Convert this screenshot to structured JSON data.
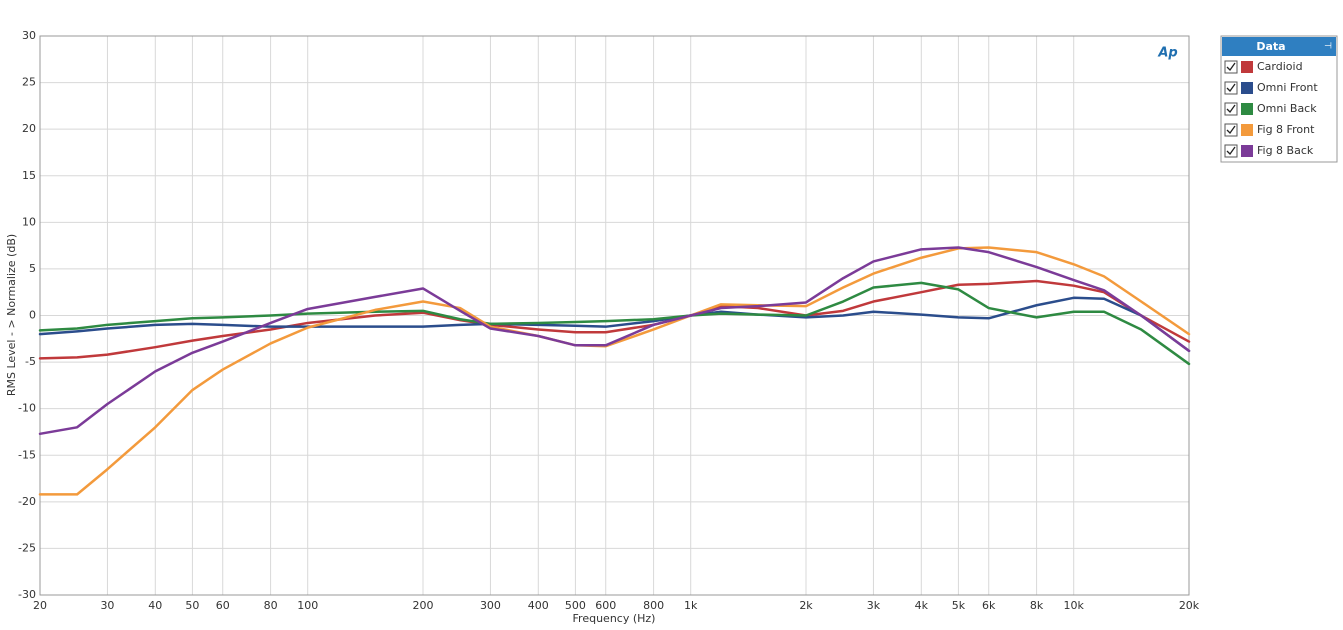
{
  "chart_data": {
    "type": "line",
    "y_label": "RMS Level - > Normalize (dB)",
    "x_label": "Frequency (Hz)",
    "logo": "Ap",
    "legend_title": "Data",
    "log_x": true,
    "grid": true,
    "legend": "right",
    "xlim": [
      20,
      20000
    ],
    "ylim": [
      -30,
      30
    ],
    "xticks": [
      20,
      30,
      40,
      50,
      60,
      80,
      100,
      200,
      300,
      400,
      500,
      600,
      800,
      {
        "value": 1000,
        "label": "1k"
      },
      {
        "value": 2000,
        "label": "2k"
      },
      {
        "value": 3000,
        "label": "3k"
      },
      {
        "value": 4000,
        "label": "4k"
      },
      {
        "value": 5000,
        "label": "5k"
      },
      {
        "value": 6000,
        "label": "6k"
      },
      {
        "value": 8000,
        "label": "8k"
      },
      {
        "value": 10000,
        "label": "10k"
      },
      {
        "value": 20000,
        "label": "20k"
      }
    ],
    "yticks": [
      -30,
      -25,
      -20,
      -15,
      -10,
      -5,
      0,
      5,
      10,
      15,
      20,
      25,
      30
    ],
    "x": [
      20,
      25,
      30,
      40,
      50,
      60,
      80,
      100,
      150,
      200,
      250,
      300,
      400,
      500,
      600,
      800,
      1000,
      1200,
      1500,
      2000,
      2500,
      3000,
      4000,
      5000,
      6000,
      8000,
      10000,
      12000,
      15000,
      20000
    ],
    "series": [
      {
        "name": "Cardioid",
        "color": "#c0393b",
        "values": [
          -4.6,
          -4.5,
          -4.2,
          -3.4,
          -2.7,
          -2.2,
          -1.5,
          -0.8,
          0,
          0.3,
          -0.5,
          -1.0,
          -1.5,
          -1.8,
          -1.8,
          -1.0,
          0,
          1.0,
          0.8,
          0,
          0.5,
          1.5,
          2.5,
          3.3,
          3.4,
          3.7,
          3.2,
          2.5,
          0,
          -2.8
        ]
      },
      {
        "name": "Omni Front",
        "color": "#2b4d8c",
        "values": [
          -2.0,
          -1.7,
          -1.4,
          -1.0,
          -0.9,
          -1.0,
          -1.2,
          -1.2,
          -1.2,
          -1.2,
          -1.0,
          -0.9,
          -1.0,
          -1.1,
          -1.2,
          -0.6,
          0,
          0.4,
          0.1,
          -0.2,
          0.0,
          0.4,
          0.1,
          -0.2,
          -0.3,
          1.1,
          1.9,
          1.8,
          0,
          -3.8
        ]
      },
      {
        "name": "Omni Back",
        "color": "#2e8a42",
        "values": [
          -1.6,
          -1.4,
          -1.0,
          -0.6,
          -0.3,
          -0.2,
          0,
          0.2,
          0.4,
          0.5,
          -0.4,
          -0.9,
          -0.8,
          -0.7,
          -0.6,
          -0.4,
          0,
          0.2,
          0.1,
          0,
          1.5,
          3.0,
          3.5,
          2.8,
          0.8,
          -0.2,
          0.4,
          0.4,
          -1.5,
          -5.2
        ]
      },
      {
        "name": "Fig 8 Front",
        "color": "#f39a3c",
        "values": [
          -19.2,
          -19.2,
          -16.5,
          -12,
          -8,
          -5.8,
          -3,
          -1.3,
          0.6,
          1.5,
          0.8,
          -1.2,
          -2.2,
          -3.2,
          -3.3,
          -1.5,
          0,
          1.2,
          1.1,
          1.0,
          3.0,
          4.5,
          6.2,
          7.2,
          7.3,
          6.8,
          5.5,
          4.2,
          1.5,
          -2.0
        ]
      },
      {
        "name": "Fig 8 Back",
        "color": "#7b3b98",
        "values": [
          -12.7,
          -12.0,
          -9.5,
          -6,
          -4,
          -2.8,
          -0.8,
          0.7,
          2.0,
          2.9,
          0.5,
          -1.4,
          -2.2,
          -3.2,
          -3.2,
          -1.0,
          0,
          0.8,
          1.0,
          1.4,
          4.0,
          5.8,
          7.1,
          7.3,
          6.8,
          5.2,
          3.8,
          2.7,
          0,
          -3.8
        ]
      }
    ]
  }
}
